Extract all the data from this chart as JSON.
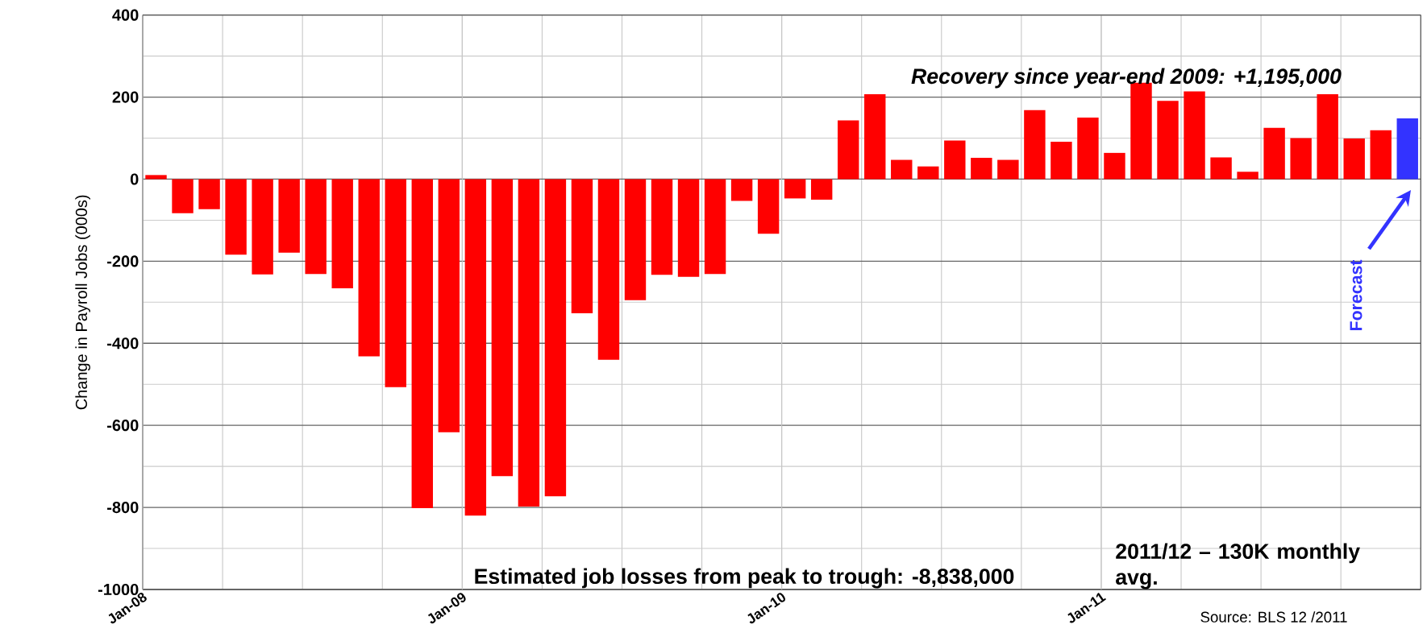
{
  "chart_data": {
    "type": "bar",
    "ylabel": "Change in Payroll Jobs (000s)",
    "categories": [
      "Jan-08",
      null,
      null,
      null,
      null,
      null,
      null,
      null,
      null,
      null,
      null,
      null,
      "Jan-09",
      null,
      null,
      null,
      null,
      null,
      null,
      null,
      null,
      null,
      null,
      null,
      "Jan-10",
      null,
      null,
      null,
      null,
      null,
      null,
      null,
      null,
      null,
      null,
      null,
      "Jan-11",
      null,
      null,
      null,
      null,
      null,
      null,
      null,
      null,
      null,
      null,
      null
    ],
    "values": [
      10,
      -83,
      -73,
      -184,
      -232,
      -179,
      -231,
      -266,
      -432,
      -507,
      -802,
      -617,
      -820,
      -724,
      -798,
      -773,
      -327,
      -440,
      -295,
      -233,
      -238,
      -231,
      -53,
      -133,
      -47,
      -50,
      143,
      207,
      47,
      31,
      94,
      52,
      47,
      168,
      91,
      150,
      64,
      235,
      191,
      214,
      53,
      18,
      125,
      100,
      207,
      99,
      119,
      148
    ],
    "colors": [
      "#ff0000",
      "#ff0000",
      "#ff0000",
      "#ff0000",
      "#ff0000",
      "#ff0000",
      "#ff0000",
      "#ff0000",
      "#ff0000",
      "#ff0000",
      "#ff0000",
      "#ff0000",
      "#ff0000",
      "#ff0000",
      "#ff0000",
      "#ff0000",
      "#ff0000",
      "#ff0000",
      "#ff0000",
      "#ff0000",
      "#ff0000",
      "#ff0000",
      "#ff0000",
      "#ff0000",
      "#ff0000",
      "#ff0000",
      "#ff0000",
      "#ff0000",
      "#ff0000",
      "#ff0000",
      "#ff0000",
      "#ff0000",
      "#ff0000",
      "#ff0000",
      "#ff0000",
      "#ff0000",
      "#ff0000",
      "#ff0000",
      "#ff0000",
      "#ff0000",
      "#ff0000",
      "#ff0000",
      "#ff0000",
      "#ff0000",
      "#ff0000",
      "#ff0000",
      "#ff0000",
      "#3333ff"
    ],
    "ylim": [
      -1000,
      400
    ],
    "yticks": [
      -1000,
      -800,
      -600,
      -400,
      -200,
      0,
      200,
      400
    ],
    "grid": true,
    "annotations": [
      "Recovery since year-end 2009: +1,195,000",
      "Estimated job losses from peak to trough: -8,838,000",
      "2011/12 – 130K monthly avg.",
      "Source: BLS 12 /2011",
      "Forecast"
    ]
  }
}
